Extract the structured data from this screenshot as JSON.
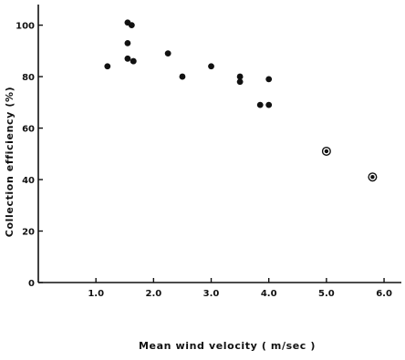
{
  "chart_data": {
    "type": "scatter",
    "title": "",
    "xlabel": "Mean wind velocity ( m/sec )",
    "ylabel": "Collection efficiency (%)",
    "xlim": [
      0,
      6.3
    ],
    "ylim": [
      0,
      108
    ],
    "x_ticks": [
      1.0,
      2.0,
      3.0,
      4.0,
      5.0,
      6.0
    ],
    "x_tick_labels": [
      "1.0",
      "2.0",
      "3.0",
      "4.0",
      "5.0",
      "6.0"
    ],
    "y_ticks": [
      0,
      20,
      40,
      60,
      80,
      100
    ],
    "y_tick_labels": [
      "0",
      "20",
      "40",
      "60",
      "80",
      "100"
    ],
    "grid": false,
    "series": [
      {
        "marker": "filled-circle",
        "x": [
          1.2,
          1.55,
          1.55,
          1.55,
          1.62,
          1.65,
          1.65,
          2.25,
          2.5,
          3.0,
          3.5,
          3.5,
          3.85,
          4.0,
          4.0
        ],
        "y": [
          84,
          101,
          93,
          87,
          100,
          86,
          86,
          89,
          80,
          84,
          80,
          78,
          69,
          69,
          79
        ]
      },
      {
        "marker": "circled-dot",
        "x": [
          5.0,
          5.8
        ],
        "y": [
          51,
          41
        ]
      }
    ]
  }
}
